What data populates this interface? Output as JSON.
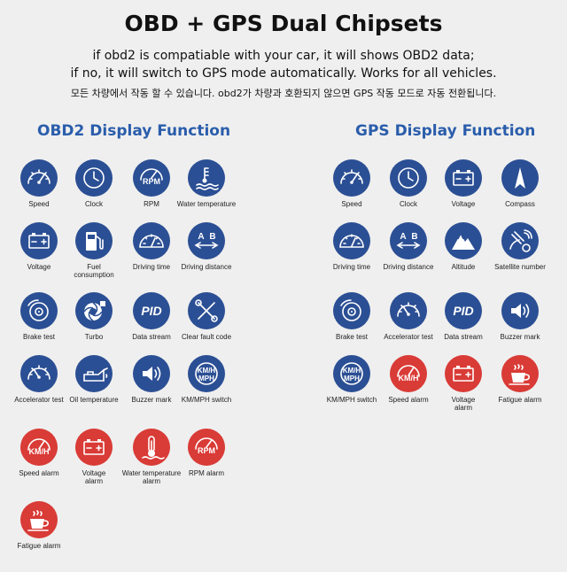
{
  "header": {
    "title": "OBD + GPS Dual Chipsets",
    "line1": "if obd2 is compatiable with your car, it will shows OBD2 data;",
    "line2": "if no, it will switch to GPS mode automatically. Works for all vehicles.",
    "korean": "모든 차량에서 작동 할 수 있습니다. obd2가 차량과 호환되지 않으면 GPS 작동 모드로 자동 전환됩니다."
  },
  "obd2": {
    "title": "OBD2 Display Function",
    "items": [
      {
        "label": "Speed",
        "icon": "speedometer-icon",
        "color": "#2b4f94"
      },
      {
        "label": "Clock",
        "icon": "clock-icon",
        "color": "#2b4f94"
      },
      {
        "label": "RPM",
        "icon": "rpm-gauge-icon",
        "color": "#2b4f94"
      },
      {
        "label": "Water temperature",
        "icon": "coolant-temp-icon",
        "color": "#2b4f94"
      },
      {
        "label": "Voltage",
        "icon": "battery-icon",
        "color": "#2b4f94"
      },
      {
        "label": "Fuel consumption",
        "icon": "fuel-pump-icon",
        "color": "#2b4f94"
      },
      {
        "label": "Driving time",
        "icon": "dial-icon",
        "color": "#2b4f94"
      },
      {
        "label": "Driving distance",
        "icon": "a-to-b-icon",
        "color": "#2b4f94"
      },
      {
        "label": "Brake test",
        "icon": "brake-disc-icon",
        "color": "#2b4f94"
      },
      {
        "label": "Turbo",
        "icon": "turbo-icon",
        "color": "#2b4f94"
      },
      {
        "label": "Data stream",
        "icon": "pid-icon",
        "color": "#2b4f94"
      },
      {
        "label": "Clear fault code",
        "icon": "wrench-icon",
        "color": "#2b4f94"
      },
      {
        "label": "Accelerator test",
        "icon": "accelerator-gauge-icon",
        "color": "#2b4f94"
      },
      {
        "label": "Oil temperature",
        "icon": "oil-can-icon",
        "color": "#2b4f94"
      },
      {
        "label": "Buzzer mark",
        "icon": "speaker-icon",
        "color": "#2b4f94"
      },
      {
        "label": "KM/MPH switch",
        "icon": "km-mph-icon",
        "color": "#2b4f94"
      },
      {
        "label": "Speed alarm",
        "icon": "kmh-alarm-icon",
        "color": "#d93b36"
      },
      {
        "label": "Voltage alarm",
        "icon": "battery-alarm-icon",
        "color": "#d93b36"
      },
      {
        "label": "Water temperature alarm",
        "icon": "coolant-alarm-icon",
        "color": "#d93b36"
      },
      {
        "label": "RPM alarm",
        "icon": "rpm-alarm-icon",
        "color": "#d93b36"
      },
      {
        "label": "Fatigue alarm",
        "icon": "coffee-cup-icon",
        "color": "#d93b36"
      }
    ]
  },
  "gps": {
    "title": "GPS Display Function",
    "items": [
      {
        "label": "Speed",
        "icon": "speedometer-icon",
        "color": "#2b4f94"
      },
      {
        "label": "Clock",
        "icon": "clock-icon",
        "color": "#2b4f94"
      },
      {
        "label": "Voltage",
        "icon": "battery-icon",
        "color": "#2b4f94"
      },
      {
        "label": "Compass",
        "icon": "compass-icon",
        "color": "#2b4f94"
      },
      {
        "label": "Driving time",
        "icon": "dial-icon",
        "color": "#2b4f94"
      },
      {
        "label": "Driving distance",
        "icon": "a-to-b-icon",
        "color": "#2b4f94"
      },
      {
        "label": "Altitude",
        "icon": "mountain-icon",
        "color": "#2b4f94"
      },
      {
        "label": "Satellite number",
        "icon": "satellite-icon",
        "color": "#2b4f94"
      },
      {
        "label": "Brake test",
        "icon": "brake-disc-icon",
        "color": "#2b4f94"
      },
      {
        "label": "Accelerator test",
        "icon": "accelerator-gauge-icon",
        "color": "#2b4f94"
      },
      {
        "label": "Data stream",
        "icon": "pid-icon",
        "color": "#2b4f94"
      },
      {
        "label": "Buzzer mark",
        "icon": "speaker-icon",
        "color": "#2b4f94"
      },
      {
        "label": "KM/MPH switch",
        "icon": "km-mph-icon",
        "color": "#2b4f94"
      },
      {
        "label": "Speed alarm",
        "icon": "kmh-alarm-icon",
        "color": "#d93b36"
      },
      {
        "label": "Voltage alarm",
        "icon": "battery-alarm-icon",
        "color": "#d93b36"
      },
      {
        "label": "Fatigue alarm",
        "icon": "coffee-cup-icon",
        "color": "#d93b36"
      }
    ]
  }
}
